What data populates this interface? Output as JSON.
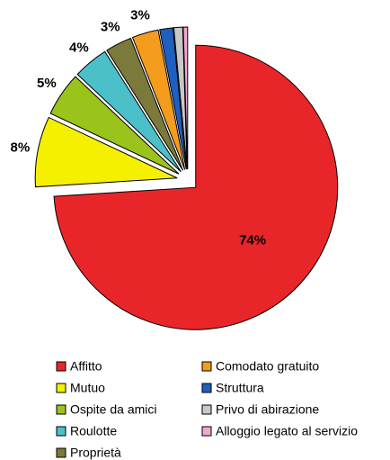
{
  "chart_data": {
    "type": "pie",
    "categories": [
      "Affitto",
      "Mutuo",
      "Ospite da amici",
      "Roulotte",
      "Proprietà",
      "Comodato gratuito",
      "Struttura",
      "Privo di abirazione",
      "Alloggio legato al servizio"
    ],
    "values": [
      74,
      8,
      5,
      4,
      3,
      3,
      1.5,
      1,
      0.5
    ],
    "value_labels": [
      "74%",
      "8%",
      "5%",
      "4%",
      "3%",
      "3%",
      null,
      null,
      null
    ],
    "colors": [
      "#e8262a",
      "#f5f000",
      "#9ac31c",
      "#4cc0c8",
      "#7b7a3a",
      "#f39c1d",
      "#1f5fbf",
      "#c8c8c8",
      "#f3a6d0"
    ],
    "legend": "bottom"
  }
}
